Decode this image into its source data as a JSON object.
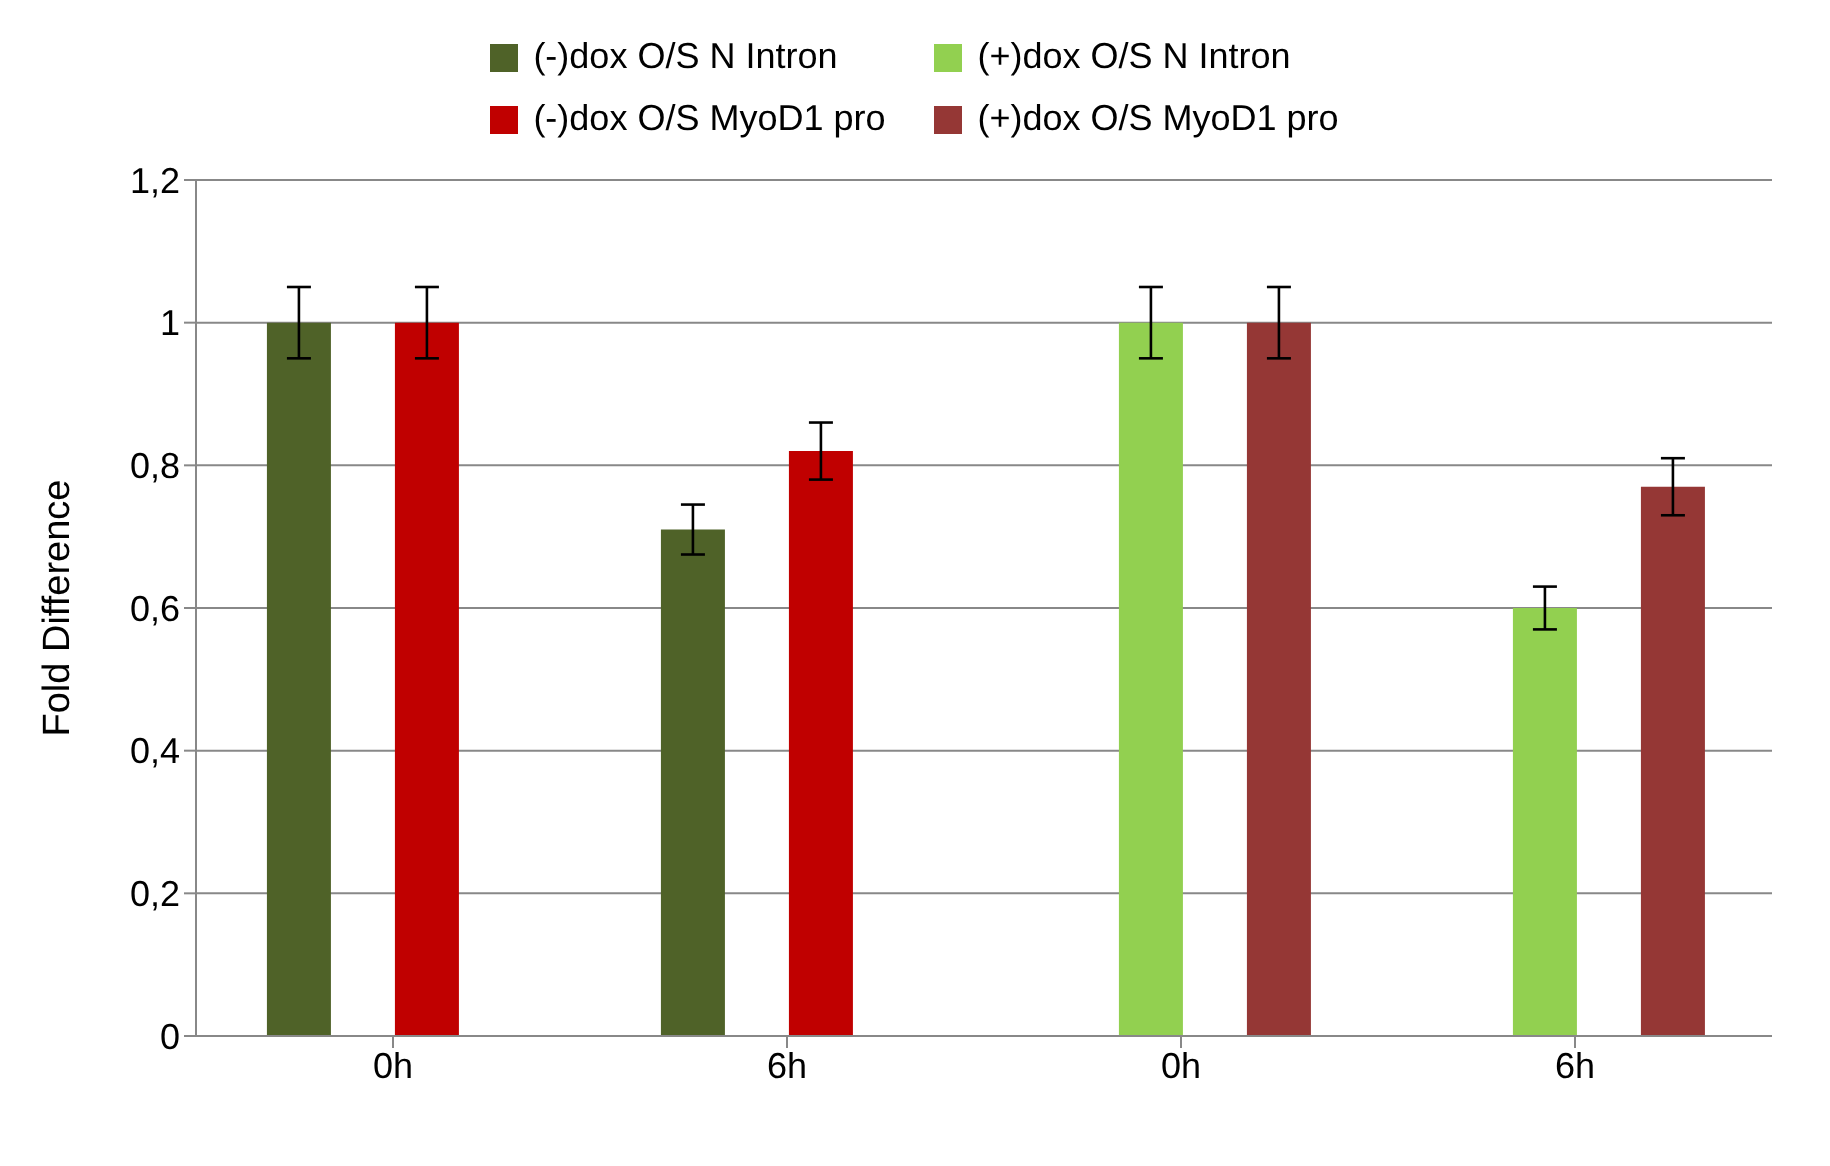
{
  "chart_data": {
    "type": "bar",
    "ylabel": "Fold Difference",
    "categories": [
      "0h",
      "6h",
      "0h",
      "6h"
    ],
    "series": [
      {
        "name": "(-)dox O/S N Intron",
        "color": "#4f6228",
        "values": [
          1.0,
          0.71,
          0,
          0
        ],
        "errors": [
          0.05,
          0.035,
          null,
          null
        ]
      },
      {
        "name": "(+)dox O/S N Intron",
        "color": "#92d050",
        "values": [
          0,
          0,
          1.0,
          0.6
        ],
        "errors": [
          null,
          null,
          0.05,
          0.03
        ]
      },
      {
        "name": "(-)dox O/S MyoD1 pro",
        "color": "#c00000",
        "values": [
          1.0,
          0.82,
          0,
          0
        ],
        "errors": [
          0.05,
          0.04,
          null,
          null
        ]
      },
      {
        "name": "(+)dox O/S MyoD1 pro",
        "color": "#953735",
        "values": [
          0,
          0,
          1.0,
          0.77
        ],
        "errors": [
          null,
          null,
          0.05,
          0.04
        ]
      }
    ],
    "ylim": [
      0,
      1.2
    ],
    "yticks": [
      0,
      {
        "value": 0.2,
        "label": "0,2"
      },
      {
        "value": 0.4,
        "label": "0,4"
      },
      {
        "value": 0.6,
        "label": "0,6"
      },
      {
        "value": 0.8,
        "label": "0,8"
      },
      1,
      {
        "value": 1.2,
        "label": "1,2"
      }
    ],
    "grid": "y",
    "legend": "top"
  }
}
